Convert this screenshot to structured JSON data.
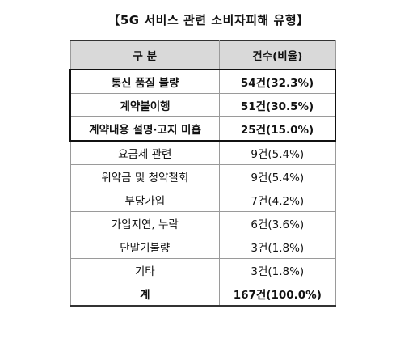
{
  "title": "【5G 서비스 관련 소비자피해 유형】",
  "table": {
    "headers": [
      "구 분",
      "건수(비율)"
    ],
    "rows": [
      {
        "category": "통신 품질 불량",
        "count": "54건(32.3%)",
        "emphasis": true
      },
      {
        "category": "계약불이행",
        "count": "51건(30.5%)",
        "emphasis": true
      },
      {
        "category": "계약내용 설명·고지 미흡",
        "count": "25건(15.0%)",
        "emphasis": true
      },
      {
        "category": "요금제 관련",
        "count": "9건(5.4%)",
        "emphasis": false
      },
      {
        "category": "위약금 및 청약철회",
        "count": "9건(5.4%)",
        "emphasis": false
      },
      {
        "category": "부당가입",
        "count": "7건(4.2%)",
        "emphasis": false
      },
      {
        "category": "가입지연, 누락",
        "count": "6건(3.6%)",
        "emphasis": false
      },
      {
        "category": "단말기불량",
        "count": "3건(1.8%)",
        "emphasis": false
      },
      {
        "category": "기타",
        "count": "3건(1.8%)",
        "emphasis": false
      }
    ],
    "total": {
      "label": "계",
      "count": "167건(100.0%)"
    }
  }
}
